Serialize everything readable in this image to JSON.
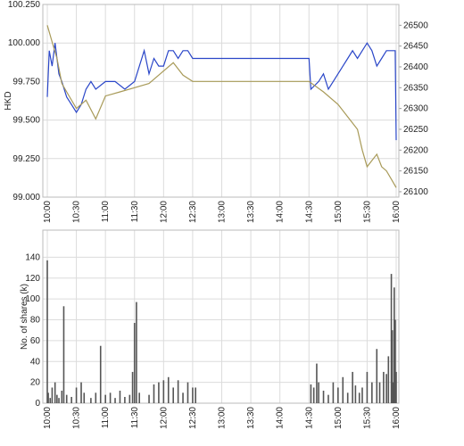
{
  "chart_data": [
    {
      "type": "line",
      "y_label": "HKD",
      "xlim": [
        "10:00",
        "16:00"
      ],
      "xticks": [
        "10:00",
        "10:30",
        "11:00",
        "11:30",
        "12:00",
        "12:30",
        "13:00",
        "13:30",
        "14:00",
        "14:30",
        "15:00",
        "15:30",
        "16:00"
      ],
      "ylim": [
        99.0,
        100.25
      ],
      "yticks": [
        {
          "value": 99.0,
          "label": "99.000"
        },
        {
          "value": 99.25,
          "label": "99.250"
        },
        {
          "value": 99.5,
          "label": "99.500"
        },
        {
          "value": 99.75,
          "label": "99.750"
        },
        {
          "value": 100.0,
          "label": "100.000"
        },
        {
          "value": 100.25,
          "label": "100.250"
        }
      ],
      "y2lim": [
        26087,
        26550
      ],
      "y2ticks": [
        26100,
        26150,
        26200,
        26250,
        26300,
        26350,
        26400,
        26450,
        26500
      ],
      "grid": true,
      "series": [
        {
          "color": "#2a46c8",
          "x": [
            "10:00",
            "10:02",
            "10:05",
            "10:08",
            "10:12",
            "10:15",
            "10:20",
            "10:25",
            "10:30",
            "10:35",
            "10:40",
            "10:45",
            "10:50",
            "11:00",
            "11:10",
            "11:20",
            "11:30",
            "11:35",
            "11:40",
            "11:45",
            "11:50",
            "11:55",
            "12:00",
            "12:05",
            "12:10",
            "12:15",
            "12:20",
            "12:25",
            "12:30",
            "14:30",
            "14:32",
            "14:40",
            "14:45",
            "14:50",
            "14:55",
            "15:00",
            "15:05",
            "15:10",
            "15:15",
            "15:20",
            "15:25",
            "15:30",
            "15:35",
            "15:40",
            "15:45",
            "15:50",
            "15:55",
            "15:59",
            "16:00"
          ],
          "values": [
            99.65,
            99.95,
            99.85,
            100.0,
            99.8,
            99.75,
            99.65,
            99.6,
            99.55,
            99.6,
            99.7,
            99.75,
            99.7,
            99.75,
            99.75,
            99.7,
            99.75,
            99.85,
            99.95,
            99.8,
            99.9,
            99.85,
            99.85,
            99.95,
            99.95,
            99.9,
            99.95,
            99.95,
            99.9,
            99.9,
            99.7,
            99.75,
            99.8,
            99.7,
            99.75,
            99.8,
            99.85,
            99.9,
            99.95,
            99.9,
            99.95,
            100.0,
            99.95,
            99.85,
            99.9,
            99.95,
            99.95,
            99.95,
            99.37
          ]
        },
        {
          "color": "#a89a58",
          "axis": "y2",
          "x": [
            "10:00",
            "10:05",
            "10:10",
            "10:15",
            "10:20",
            "10:30",
            "10:40",
            "10:50",
            "11:00",
            "11:15",
            "11:30",
            "11:45",
            "12:00",
            "12:10",
            "12:20",
            "12:30",
            "14:30",
            "14:45",
            "15:00",
            "15:10",
            "15:20",
            "15:25",
            "15:30",
            "15:40",
            "15:45",
            "15:50",
            "15:55",
            "16:00"
          ],
          "values": [
            26500,
            26460,
            26420,
            26360,
            26340,
            26300,
            26320,
            26275,
            26330,
            26340,
            26350,
            26360,
            26390,
            26410,
            26380,
            26365,
            26365,
            26340,
            26310,
            26280,
            26250,
            26200,
            26160,
            26190,
            26160,
            26150,
            26130,
            26110
          ]
        }
      ]
    },
    {
      "type": "bar",
      "y_label": "No. of shares (k)",
      "color": "#555555",
      "xlim": [
        "10:00",
        "16:00"
      ],
      "xticks": [
        "10:00",
        "10:30",
        "11:00",
        "11:30",
        "12:00",
        "12:30",
        "13:00",
        "13:30",
        "14:00",
        "14:30",
        "15:00",
        "15:30",
        "16:00"
      ],
      "ylim": [
        0,
        166
      ],
      "yticks": [
        0,
        20,
        40,
        60,
        80,
        100,
        120,
        140
      ],
      "grid": true,
      "x": [
        "10:00",
        "10:01",
        "10:03",
        "10:05",
        "10:08",
        "10:10",
        "10:12",
        "10:15",
        "10:17",
        "10:20",
        "10:25",
        "10:30",
        "10:35",
        "10:38",
        "10:45",
        "10:50",
        "10:55",
        "11:00",
        "11:05",
        "11:10",
        "11:15",
        "11:20",
        "11:25",
        "11:28",
        "11:30",
        "11:32",
        "11:35",
        "11:45",
        "11:50",
        "11:55",
        "12:00",
        "12:05",
        "12:10",
        "12:15",
        "12:20",
        "12:25",
        "12:30",
        "12:33",
        "14:32",
        "14:35",
        "14:38",
        "14:40",
        "14:45",
        "14:50",
        "14:55",
        "15:00",
        "15:05",
        "15:10",
        "15:15",
        "15:18",
        "15:22",
        "15:25",
        "15:30",
        "15:35",
        "15:40",
        "15:43",
        "15:47",
        "15:50",
        "15:52",
        "15:55",
        "15:56",
        "15:57",
        "15:58",
        "15:59",
        "16:00"
      ],
      "values": [
        137,
        10,
        5,
        15,
        20,
        8,
        5,
        12,
        93,
        8,
        6,
        15,
        20,
        10,
        5,
        10,
        55,
        8,
        10,
        5,
        12,
        6,
        8,
        30,
        77,
        97,
        10,
        8,
        18,
        20,
        22,
        25,
        15,
        22,
        10,
        20,
        15,
        15,
        18,
        15,
        38,
        20,
        12,
        8,
        20,
        15,
        25,
        10,
        30,
        17,
        10,
        15,
        30,
        20,
        52,
        20,
        30,
        28,
        45,
        124,
        70,
        20,
        111,
        80,
        30
      ]
    }
  ]
}
